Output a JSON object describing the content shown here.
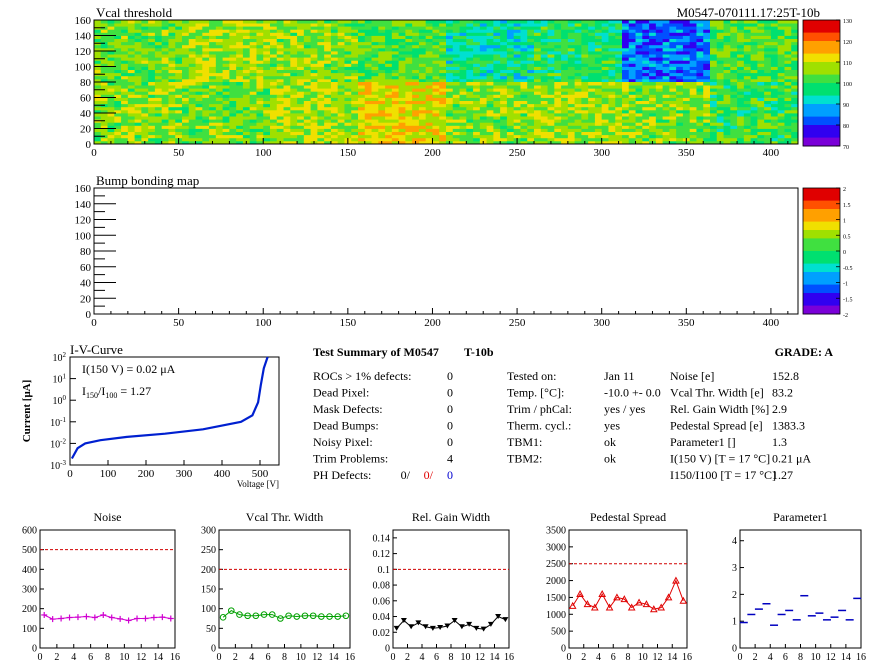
{
  "chart_data": [
    {
      "type": "heatmap",
      "title": "Vcal threshold",
      "run_label": "M0547-070111.17:25T-10b",
      "x_ticks": [
        "0",
        "50",
        "100",
        "150",
        "200",
        "250",
        "300",
        "350",
        "400"
      ],
      "y_ticks": [
        "0",
        "20",
        "40",
        "60",
        "80",
        "100",
        "120",
        "140",
        "160"
      ],
      "xlim": [
        0,
        416
      ],
      "ylim": [
        0,
        160
      ],
      "color_scale": {
        "min": 70,
        "max": 130,
        "labels": [
          "130",
          "120",
          "110",
          "100",
          "90",
          "80",
          "70"
        ]
      },
      "roc_blocks": [
        {
          "x": [
            0,
            52
          ],
          "y": [
            80,
            160
          ],
          "mean": 104
        },
        {
          "x": [
            52,
            104
          ],
          "y": [
            80,
            160
          ],
          "mean": 108
        },
        {
          "x": [
            104,
            156
          ],
          "y": [
            80,
            160
          ],
          "mean": 106
        },
        {
          "x": [
            156,
            208
          ],
          "y": [
            80,
            160
          ],
          "mean": 103
        },
        {
          "x": [
            208,
            260
          ],
          "y": [
            80,
            160
          ],
          "mean": 96
        },
        {
          "x": [
            260,
            312
          ],
          "y": [
            80,
            160
          ],
          "mean": 99
        },
        {
          "x": [
            312,
            364
          ],
          "y": [
            80,
            160
          ],
          "mean": 84
        },
        {
          "x": [
            364,
            416
          ],
          "y": [
            80,
            160
          ],
          "mean": 103
        },
        {
          "x": [
            0,
            52
          ],
          "y": [
            0,
            80
          ],
          "mean": 106
        },
        {
          "x": [
            52,
            104
          ],
          "y": [
            0,
            80
          ],
          "mean": 104
        },
        {
          "x": [
            104,
            156
          ],
          "y": [
            0,
            80
          ],
          "mean": 108
        },
        {
          "x": [
            156,
            208
          ],
          "y": [
            0,
            80
          ],
          "mean": 112
        },
        {
          "x": [
            208,
            260
          ],
          "y": [
            0,
            80
          ],
          "mean": 106
        },
        {
          "x": [
            260,
            312
          ],
          "y": [
            0,
            80
          ],
          "mean": 107
        },
        {
          "x": [
            312,
            364
          ],
          "y": [
            0,
            80
          ],
          "mean": 106
        },
        {
          "x": [
            364,
            416
          ],
          "y": [
            0,
            80
          ],
          "mean": 101
        }
      ]
    },
    {
      "type": "heatmap",
      "title": "Bump bonding map",
      "x_ticks": [
        "0",
        "50",
        "100",
        "150",
        "200",
        "250",
        "300",
        "350",
        "400"
      ],
      "y_ticks": [
        "0",
        "20",
        "40",
        "60",
        "80",
        "100",
        "120",
        "140",
        "160"
      ],
      "xlim": [
        0,
        416
      ],
      "ylim": [
        0,
        160
      ],
      "color_scale": {
        "min": -2,
        "max": 2,
        "labels": [
          "2",
          "1.5",
          "1",
          "0.5",
          "0",
          "-0.5",
          "-1",
          "-1.5",
          "-2"
        ]
      }
    },
    {
      "type": "line",
      "title": "I-V-Curve",
      "xlabel": "Voltage [V]",
      "ylabel": "Current [μA]",
      "x_ticks": [
        "0",
        "100",
        "200",
        "300",
        "400",
        "500"
      ],
      "xlim": [
        0,
        550
      ],
      "ylim": [
        0.001,
        100
      ],
      "log_y": true,
      "annotations": [
        "I(150 V) = 0.02 μA",
        "I150/I100 = 1.27"
      ],
      "x": [
        5,
        20,
        40,
        80,
        150,
        250,
        350,
        450,
        480,
        495,
        502,
        510,
        520
      ],
      "y": [
        0.002,
        0.006,
        0.01,
        0.014,
        0.02,
        0.028,
        0.045,
        0.1,
        0.2,
        0.8,
        5,
        30,
        100
      ]
    },
    {
      "type": "line",
      "title": "Noise",
      "x": [
        0,
        1,
        2,
        3,
        4,
        5,
        6,
        7,
        8,
        9,
        10,
        11,
        12,
        13,
        14,
        15
      ],
      "values": [
        168,
        147,
        150,
        155,
        157,
        160,
        155,
        168,
        155,
        148,
        140,
        150,
        150,
        155,
        157,
        150
      ],
      "limit": 500,
      "ylim": [
        0,
        600
      ],
      "y_ticks": [
        "0",
        "100",
        "200",
        "300",
        "400",
        "500",
        "600"
      ],
      "x_ticks": [
        "0",
        "2",
        "4",
        "6",
        "8",
        "10",
        "12",
        "14",
        "16"
      ],
      "color": "#d000d0",
      "marker": "plus"
    },
    {
      "type": "line",
      "title": "Vcal Thr. Width",
      "x": [
        0,
        1,
        2,
        3,
        4,
        5,
        6,
        7,
        8,
        9,
        10,
        11,
        12,
        13,
        14,
        15
      ],
      "values": [
        78,
        95,
        85,
        82,
        82,
        85,
        85,
        75,
        82,
        80,
        82,
        82,
        80,
        80,
        80,
        82
      ],
      "limit": 200,
      "ylim": [
        0,
        300
      ],
      "y_ticks": [
        "0",
        "50",
        "100",
        "150",
        "200",
        "250",
        "300"
      ],
      "x_ticks": [
        "0",
        "2",
        "4",
        "6",
        "8",
        "10",
        "12",
        "14",
        "16"
      ],
      "color": "#00a000",
      "marker": "circle"
    },
    {
      "type": "line",
      "title": "Rel. Gain Width",
      "x": [
        0,
        1,
        2,
        3,
        4,
        5,
        6,
        7,
        8,
        9,
        10,
        11,
        12,
        13,
        14,
        15
      ],
      "values": [
        0.025,
        0.035,
        0.027,
        0.032,
        0.027,
        0.025,
        0.026,
        0.028,
        0.035,
        0.027,
        0.03,
        0.025,
        0.024,
        0.03,
        0.04,
        0.036
      ],
      "limit": 0.1,
      "ylim": [
        0,
        0.15
      ],
      "y_ticks": [
        "0",
        "0.02",
        "0.04",
        "0.06",
        "0.08",
        "0.1",
        "0.12",
        "0.14"
      ],
      "x_ticks": [
        "0",
        "2",
        "4",
        "6",
        "8",
        "10",
        "12",
        "14",
        "16"
      ],
      "color": "#000000",
      "marker": "triangle-down"
    },
    {
      "type": "line",
      "title": "Pedestal Spread",
      "x": [
        0,
        1,
        2,
        3,
        4,
        5,
        6,
        7,
        8,
        9,
        10,
        11,
        12,
        13,
        14,
        15
      ],
      "values": [
        1250,
        1600,
        1300,
        1200,
        1600,
        1200,
        1500,
        1450,
        1200,
        1350,
        1300,
        1150,
        1200,
        1500,
        2000,
        1400
      ],
      "limit": 2500,
      "ylim": [
        0,
        3500
      ],
      "y_ticks": [
        "0",
        "500",
        "1000",
        "1500",
        "2000",
        "2500",
        "3000",
        "3500"
      ],
      "x_ticks": [
        "0",
        "2",
        "4",
        "6",
        "8",
        "10",
        "12",
        "14",
        "16"
      ],
      "color": "#e00000",
      "marker": "triangle-up"
    },
    {
      "type": "scatter",
      "title": "Parameter1",
      "x": [
        0,
        1,
        2,
        3,
        4,
        5,
        6,
        7,
        8,
        9,
        10,
        11,
        12,
        13,
        14,
        15
      ],
      "values": [
        0.95,
        1.25,
        1.45,
        1.65,
        0.85,
        1.25,
        1.4,
        1.05,
        1.95,
        1.2,
        1.3,
        1.05,
        1.15,
        1.4,
        1.05,
        1.85
      ],
      "ylim": [
        0,
        4.4
      ],
      "y_ticks": [
        "0",
        "1",
        "2",
        "3",
        "4"
      ],
      "x_ticks": [
        "0",
        "2",
        "4",
        "6",
        "8",
        "10",
        "12",
        "14",
        "16"
      ],
      "color": "#0000c0",
      "marker": "hline"
    }
  ],
  "summary": {
    "title": "Test Summary of M0547",
    "run": "T-10b",
    "grade": "GRADE:  A",
    "left_rows": [
      {
        "label": "ROCs > 1% defects:",
        "value": "0"
      },
      {
        "label": "Dead Pixel:",
        "value": "0"
      },
      {
        "label": "Mask Defects:",
        "value": "0"
      },
      {
        "label": "Dead Bumps:",
        "value": "0"
      },
      {
        "label": "Noisy Pixel:",
        "value": "0"
      },
      {
        "label": "Trim Problems:",
        "value": "4"
      }
    ],
    "ph_defects": {
      "label": "PH Defects:",
      "v1": "0/",
      "v2": "0/",
      "v3": "0"
    },
    "mid_rows": [
      {
        "label": "Tested on:",
        "value": "Jan 11"
      },
      {
        "label": "Temp. [°C]:",
        "value": "-10.0 +- 0.0"
      },
      {
        "label": "Trim / phCal:",
        "value": "yes / yes"
      },
      {
        "label": "Therm. cycl.:",
        "value": "yes"
      },
      {
        "label": "TBM1:",
        "value": "ok"
      },
      {
        "label": "TBM2:",
        "value": "ok"
      }
    ],
    "right_rows": [
      {
        "label": "Noise [e]",
        "value": "152.8"
      },
      {
        "label": "Vcal Thr. Width [e]",
        "value": "83.2"
      },
      {
        "label": "Rel. Gain Width [%]",
        "value": "2.9"
      },
      {
        "label": "Pedestal Spread [e]",
        "value": "1383.3"
      },
      {
        "label": "Parameter1 []",
        "value": "1.3"
      },
      {
        "label": "I(150 V) [T = 17 °C]",
        "value": "0.21 μA"
      },
      {
        "label": "I150/I100 [T = 17 °C]",
        "value": "1.27"
      }
    ]
  },
  "colors": {
    "palette": [
      "#7a00d8",
      "#3000f0",
      "#0050ff",
      "#00a0ff",
      "#00e0d0",
      "#00e070",
      "#40e040",
      "#a0e000",
      "#f0e000",
      "#ffa000",
      "#ff5000",
      "#e00000"
    ]
  }
}
